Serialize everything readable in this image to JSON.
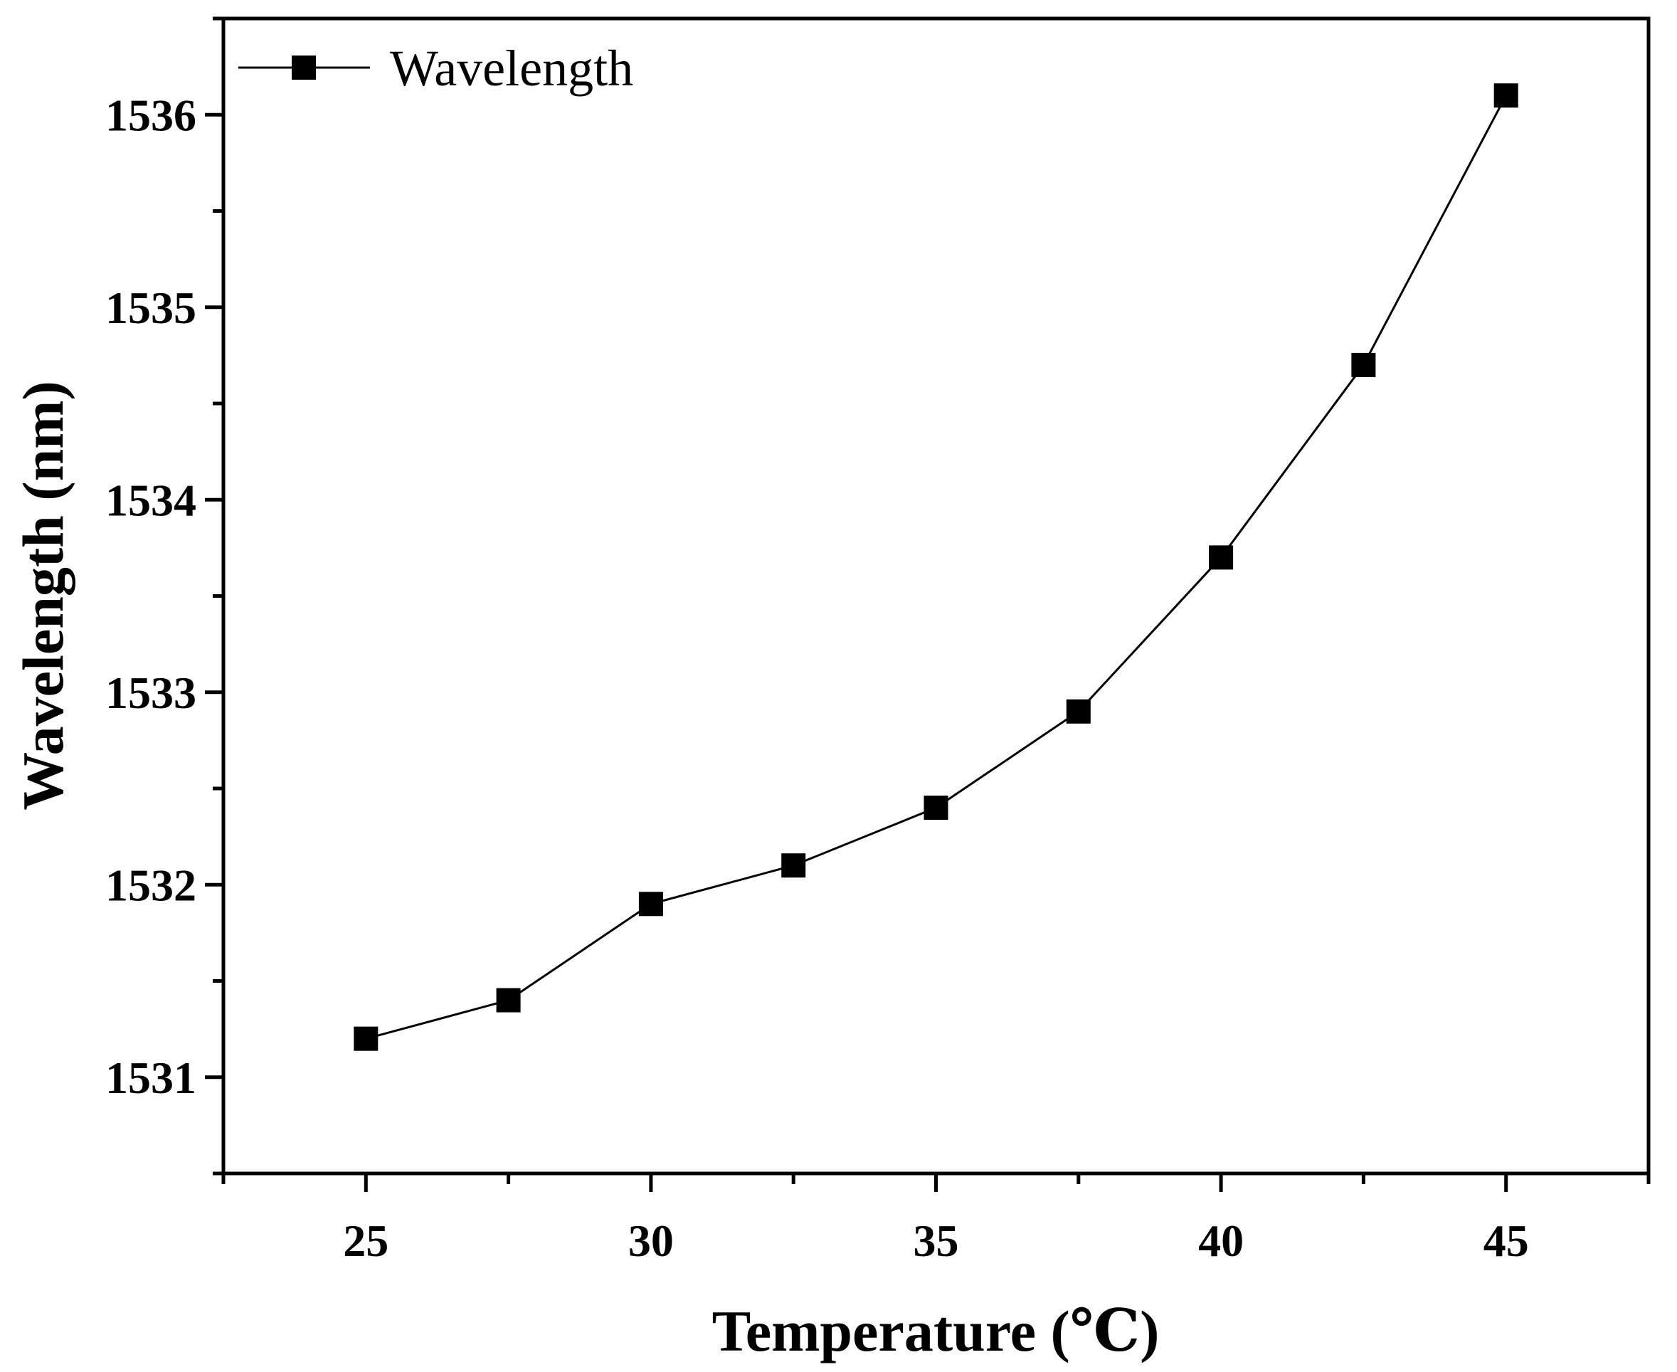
{
  "chart_data": {
    "type": "line",
    "title": "",
    "xlabel": "Temperature (℃)",
    "ylabel": "Wavelength (nm)",
    "xlim": [
      22.5,
      47.5
    ],
    "ylim": [
      1530.5,
      1536.5
    ],
    "xticks": [
      25,
      30,
      35,
      40,
      45
    ],
    "xticks_minor": [
      22.5,
      27.5,
      32.5,
      37.5,
      42.5,
      47.5
    ],
    "yticks": [
      1531,
      1532,
      1533,
      1534,
      1535,
      1536
    ],
    "yticks_minor": [
      1530.5,
      1531.5,
      1532.5,
      1533.5,
      1534.5,
      1535.5,
      1536.5
    ],
    "grid": false,
    "legend_position": "top-left",
    "marker": "square",
    "series": [
      {
        "name": "Wavelength",
        "color": "#000000",
        "x": [
          25,
          27.5,
          30,
          32.5,
          35,
          37.5,
          40,
          42.5,
          45
        ],
        "y": [
          1531.2,
          1531.4,
          1531.9,
          1532.1,
          1532.4,
          1532.9,
          1533.7,
          1534.7,
          1536.1
        ]
      }
    ]
  }
}
